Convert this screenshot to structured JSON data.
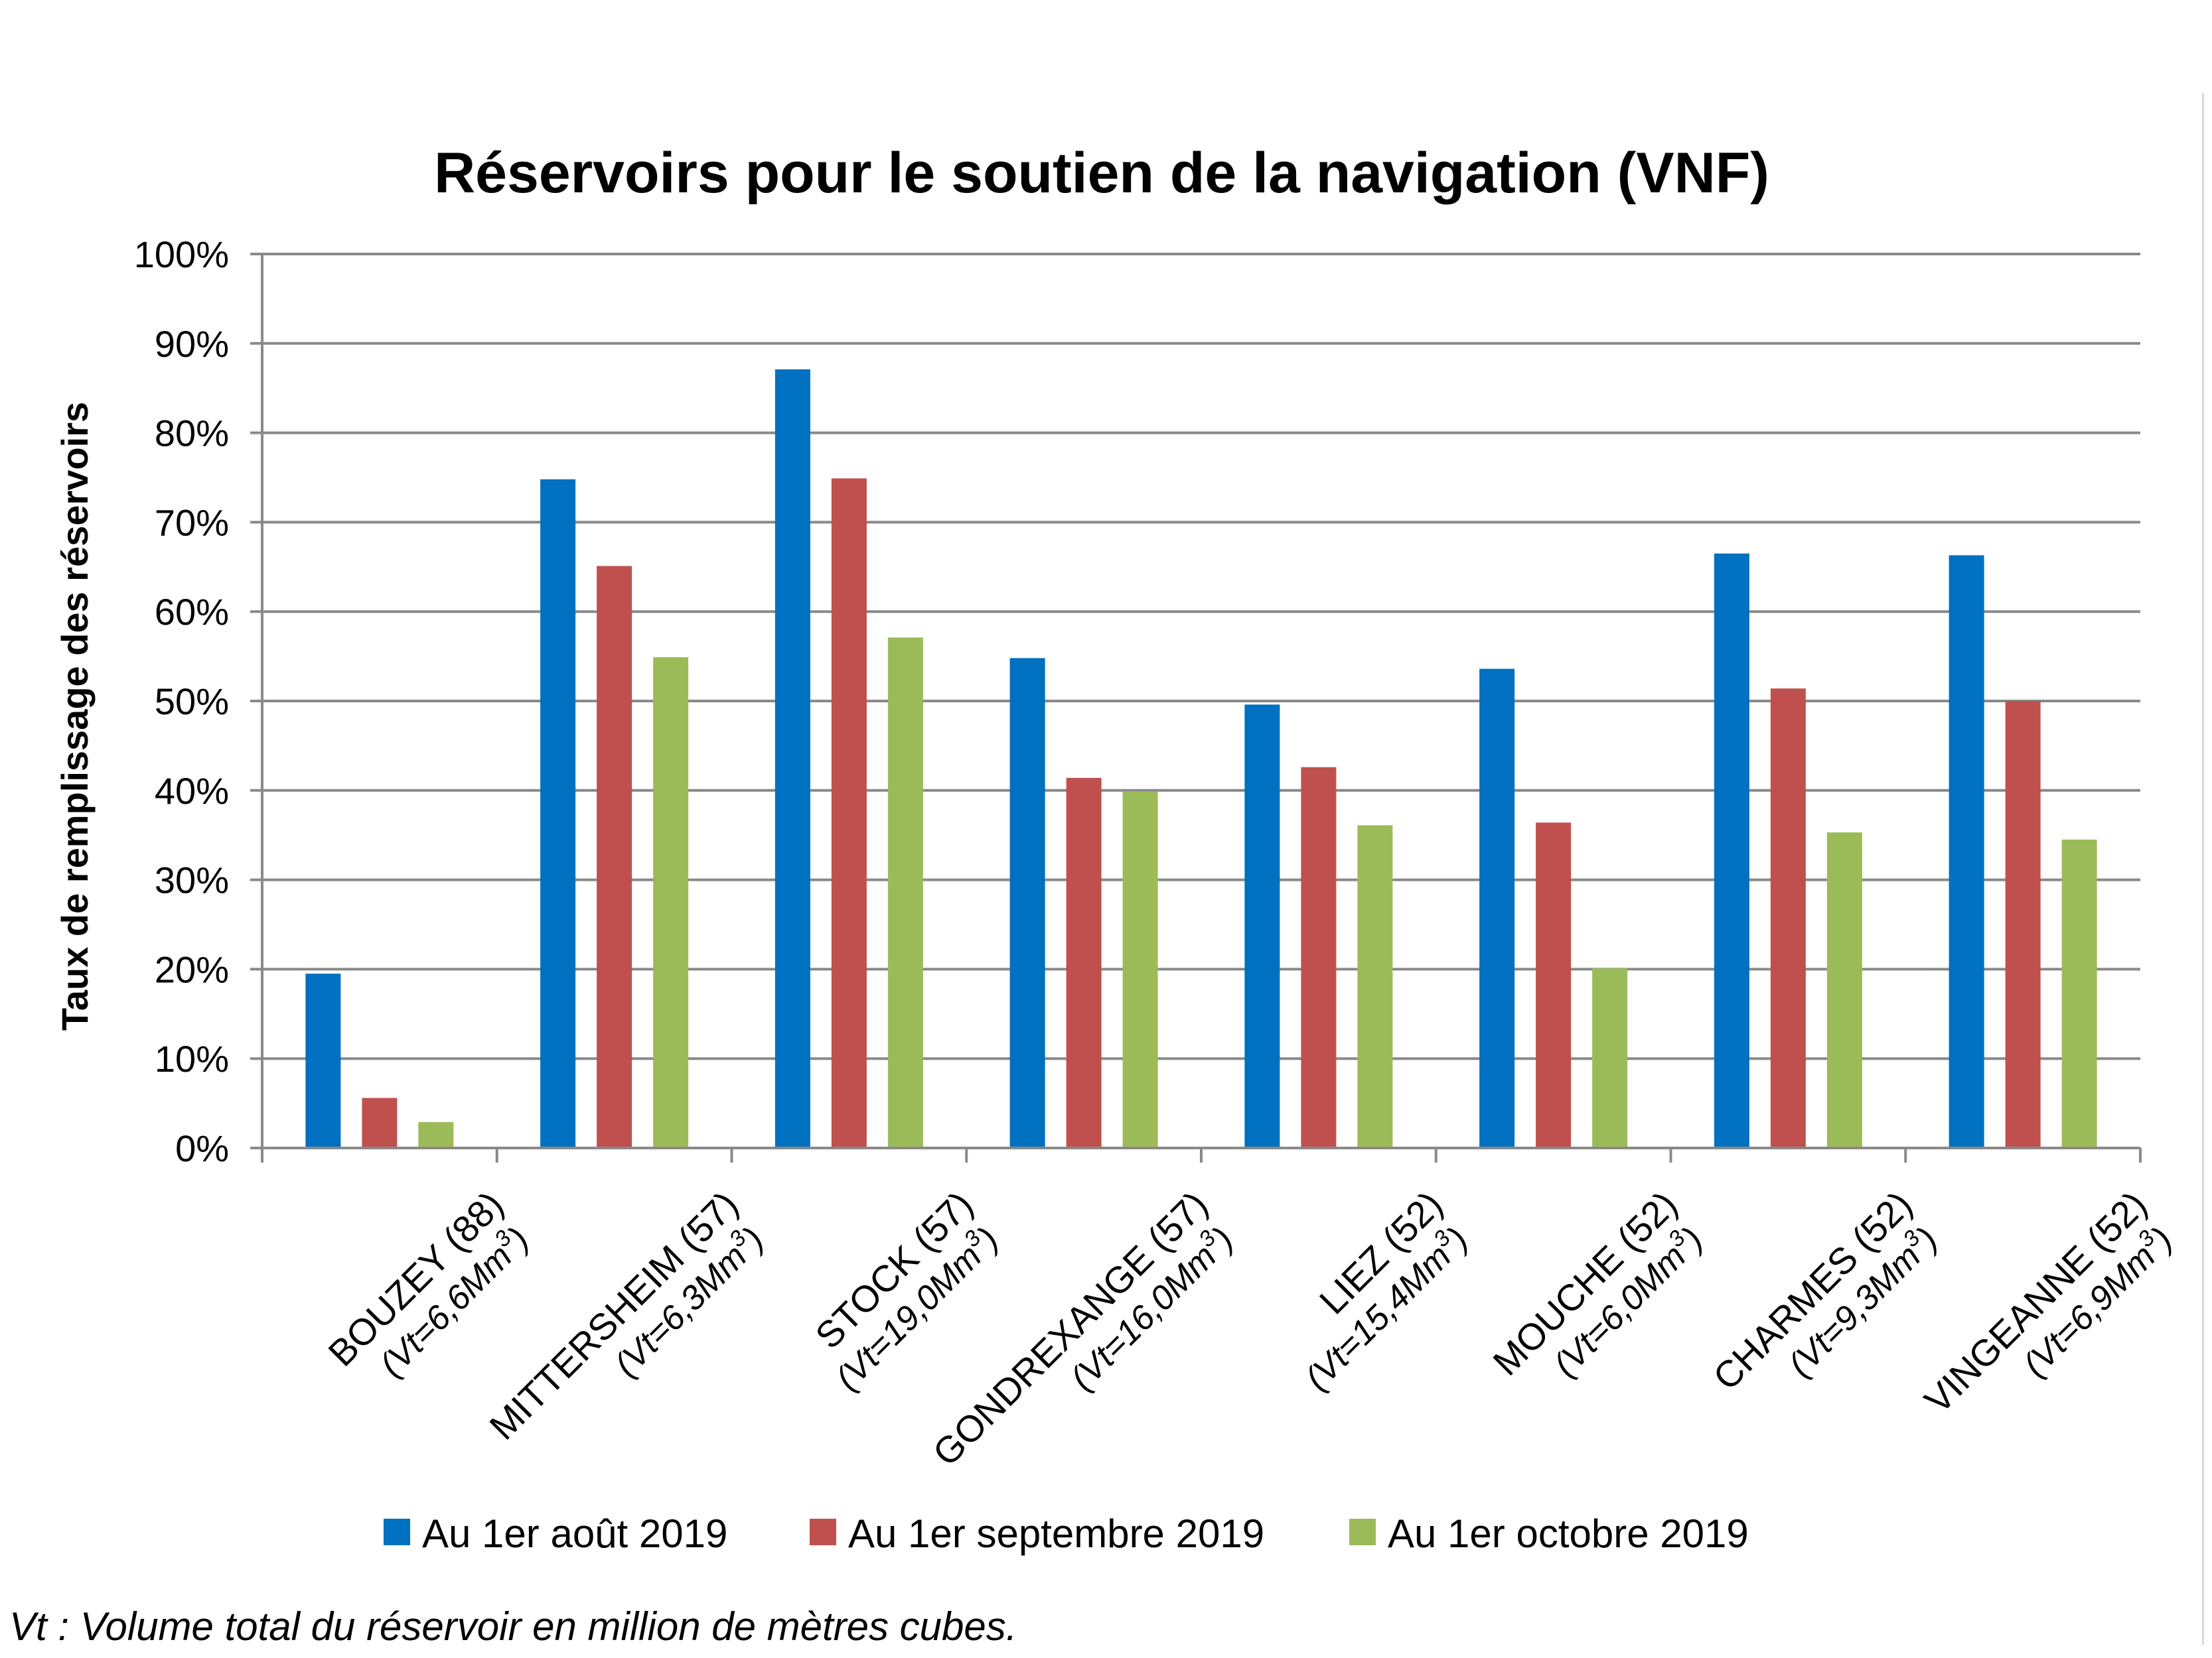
{
  "chart_data": {
    "type": "bar",
    "title": "Réservoirs pour le soutien de la navigation (VNF)",
    "ylabel": "Taux de remplissage des réservoirs",
    "ylim": [
      0,
      100
    ],
    "ytick_labels": [
      "0%",
      "10%",
      "20%",
      "30%",
      "40%",
      "50%",
      "60%",
      "70%",
      "80%",
      "90%",
      "100%"
    ],
    "grid": true,
    "legend_position": "bottom",
    "categories": [
      {
        "name": "BOUZEY (88)",
        "volume": "(Vt=6,6Mm",
        "sup": "3",
        "close": ")"
      },
      {
        "name": "MITTERSHEIM (57)",
        "volume": "(Vt=6,3Mm",
        "sup": "3",
        "close": ")"
      },
      {
        "name": "STOCK (57)",
        "volume": "(Vt=19,0Mm",
        "sup": "3",
        "close": ")"
      },
      {
        "name": "GONDREXANGE (57)",
        "volume": "(Vt=16,0Mm",
        "sup": "3",
        "close": ")"
      },
      {
        "name": "LIEZ (52)",
        "volume": "(Vt=15,4Mm",
        "sup": "3",
        "close": ")"
      },
      {
        "name": "MOUCHE (52)",
        "volume": "(Vt=6,0Mm",
        "sup": "3",
        "close": ")"
      },
      {
        "name": "CHARMES (52)",
        "volume": "(Vt=9,3Mm",
        "sup": "3",
        "close": ")"
      },
      {
        "name": "VINGEANNE (52)",
        "volume": "(Vt=6,9Mm",
        "sup": "3",
        "close": ")"
      }
    ],
    "series": [
      {
        "name": "Au 1er août 2019",
        "color": "#0070C0",
        "values": [
          19.5,
          74.8,
          87.1,
          54.8,
          49.6,
          53.6,
          66.5,
          66.3
        ]
      },
      {
        "name": "Au 1er septembre 2019",
        "color": "#C0504D",
        "values": [
          5.6,
          65.1,
          74.9,
          41.4,
          42.6,
          36.4,
          51.4,
          50.0
        ]
      },
      {
        "name": "Au 1er octobre 2019",
        "color": "#9BBB59",
        "values": [
          2.9,
          54.9,
          57.1,
          39.9,
          36.1,
          20.1,
          35.3,
          34.5
        ]
      }
    ]
  },
  "footnote": "Vt : Volume total du réservoir en million de mètres cubes."
}
